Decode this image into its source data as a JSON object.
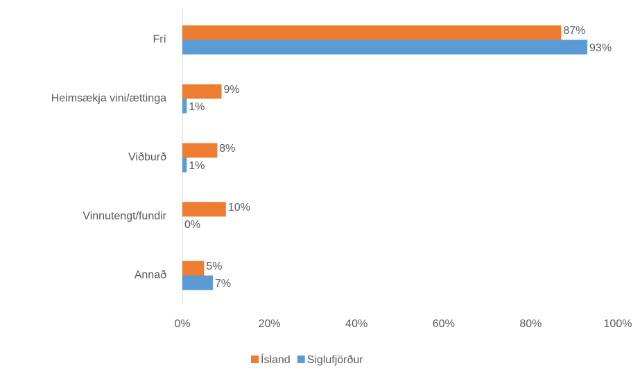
{
  "chart_data": {
    "type": "bar",
    "orientation": "horizontal",
    "categories": [
      "Frí",
      "Heimsækja vini/ættinga",
      "Viðburð",
      "Vinnutengt/fundir",
      "Annað"
    ],
    "series": [
      {
        "name": "Ísland",
        "color": "#ED7D31",
        "values": [
          87,
          9,
          8,
          10,
          5
        ],
        "value_labels": [
          "87%",
          "9%",
          "8%",
          "10%",
          "5%"
        ]
      },
      {
        "name": "Siglufjörður",
        "color": "#5B9BD5",
        "values": [
          93,
          1,
          1,
          0,
          7
        ],
        "value_labels": [
          "93%",
          "1%",
          "1%",
          "0%",
          "7%"
        ]
      }
    ],
    "xlim": [
      0,
      100
    ],
    "xticks": [
      {
        "value": 0,
        "label": "0%"
      },
      {
        "value": 20,
        "label": "20%"
      },
      {
        "value": 40,
        "label": "40%"
      },
      {
        "value": 60,
        "label": "60%"
      },
      {
        "value": 80,
        "label": "80%"
      },
      {
        "value": 100,
        "label": "100%"
      }
    ],
    "grid": false,
    "legend": "bottom"
  }
}
